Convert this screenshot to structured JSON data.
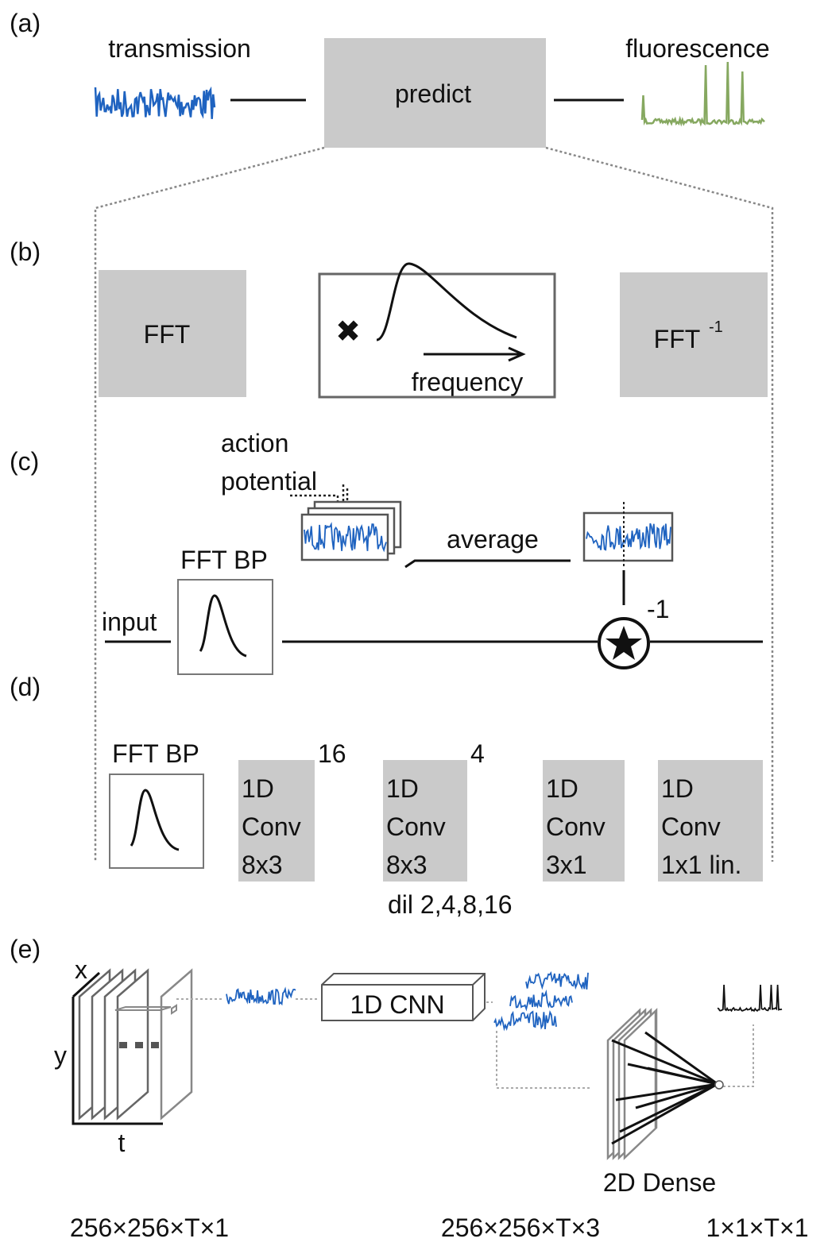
{
  "panel_a": {
    "label": "(a)",
    "input": "transmission",
    "box": "predict",
    "output": "fluorescence"
  },
  "panel_b": {
    "label": "(b)",
    "fft": "FFT",
    "multiply": "✖",
    "axis": "frequency",
    "ifft": "FFT",
    "ifft_exponent": "-1"
  },
  "panel_c": {
    "label": "(c)",
    "note_line1": "action",
    "note_line2": "potential",
    "average": "average",
    "filter": "FFT BP",
    "input": "input",
    "exponent": "-1"
  },
  "panel_d": {
    "label": "(d)",
    "filter": "FFT BP",
    "layers": [
      {
        "lines": [
          "1D",
          "Conv",
          "8x3"
        ],
        "count": "16"
      },
      {
        "lines": [
          "1D",
          "Conv",
          "8x3"
        ],
        "count": "4",
        "note": "dil 2,4,8,16"
      },
      {
        "lines": [
          "1D",
          "Conv",
          "3x1"
        ]
      },
      {
        "lines": [
          "1D",
          "Conv",
          "1x1 lin."
        ]
      }
    ]
  },
  "panel_e": {
    "label": "(e)",
    "axis_x": "x",
    "axis_y": "y",
    "axis_t": "t",
    "cnn": "1D CNN",
    "dense": "2D Dense",
    "shapes": [
      "256×256×T×1",
      "256×256×T×3",
      "1×1×T×1"
    ]
  }
}
